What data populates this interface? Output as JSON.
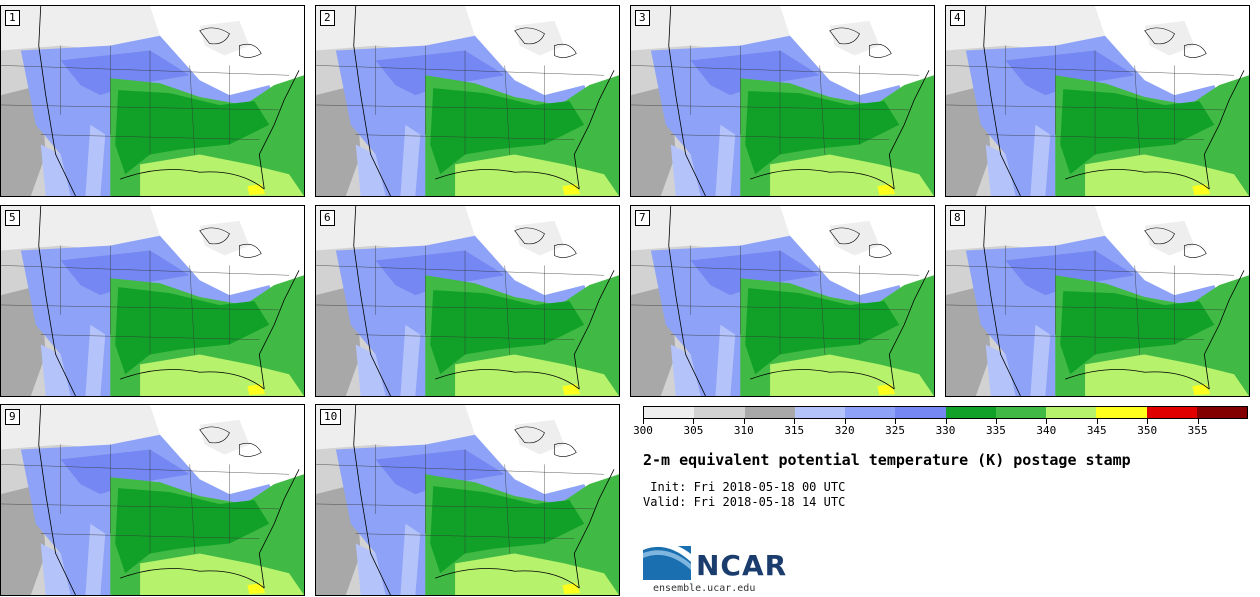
{
  "members": [
    {
      "label": "1"
    },
    {
      "label": "2"
    },
    {
      "label": "3"
    },
    {
      "label": "4"
    },
    {
      "label": "5"
    },
    {
      "label": "6"
    },
    {
      "label": "7"
    },
    {
      "label": "8"
    },
    {
      "label": "9"
    },
    {
      "label": "10"
    }
  ],
  "colorbar": {
    "colors": [
      "#eeeeee",
      "#d2d2d2",
      "#a8a8a8",
      "#b4c3fa",
      "#8ea3f7",
      "#7487f2",
      "#12a128",
      "#40ba44",
      "#b6f26c",
      "#ffff1e",
      "#e10000",
      "#820000"
    ],
    "ticks": [
      "300",
      "305",
      "310",
      "315",
      "320",
      "325",
      "330",
      "335",
      "340",
      "345",
      "350",
      "355"
    ]
  },
  "title": "2-m equivalent potential temperature (K) postage stamp",
  "init": " Init: Fri 2018-05-18 00 UTC",
  "valid": "Valid: Fri 2018-05-18 14 UTC",
  "logo": {
    "text": "NCAR",
    "url_text": "ensemble.ucar.edu",
    "color": "#1a3d6e"
  }
}
